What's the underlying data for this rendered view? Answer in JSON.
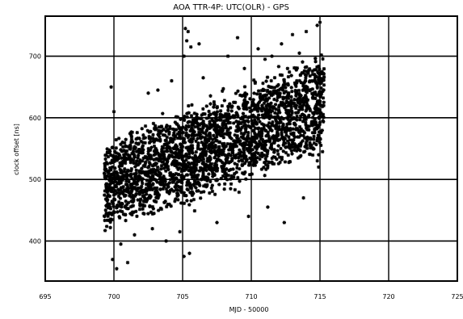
{
  "chart_data": {
    "type": "scatter",
    "title": "AOA TTR-4P:   UTC(OLR) - GPS",
    "xlabel": "MJD - 50000",
    "ylabel": "clock offset [ns]",
    "xlim": [
      695,
      725
    ],
    "ylim": [
      335,
      765
    ],
    "xticks": [
      695,
      700,
      705,
      710,
      715,
      720,
      725
    ],
    "yticks": [
      400,
      500,
      600,
      700
    ],
    "grid": true,
    "marker": "asterisk",
    "color": "#000000",
    "point_density_note_removed": null,
    "x_data_range": [
      699.3,
      715.3
    ],
    "trend": {
      "start": {
        "x": 699.5,
        "y": 490
      },
      "end": {
        "x": 715,
        "y": 620
      }
    },
    "spread_half_width": [
      65,
      75
    ],
    "points": [
      [
        699.8,
        650
      ],
      [
        699.9,
        370
      ],
      [
        700.0,
        610
      ],
      [
        700.2,
        355
      ],
      [
        701.0,
        365
      ],
      [
        702.5,
        640
      ],
      [
        703.2,
        645
      ],
      [
        705.2,
        745
      ],
      [
        705.4,
        740
      ],
      [
        705.3,
        725
      ],
      [
        705.6,
        715
      ],
      [
        705.1,
        700
      ],
      [
        706.2,
        720
      ],
      [
        705.1,
        375
      ],
      [
        705.5,
        380
      ],
      [
        708.3,
        700
      ],
      [
        709.0,
        730
      ],
      [
        711.5,
        700
      ],
      [
        712.2,
        720
      ],
      [
        713.0,
        735
      ],
      [
        714.0,
        740
      ],
      [
        714.8,
        750
      ],
      [
        715.0,
        755
      ],
      [
        712.4,
        430
      ],
      [
        713.5,
        705
      ],
      [
        710.5,
        712
      ],
      [
        711.0,
        695
      ],
      [
        709.5,
        680
      ],
      [
        706.5,
        665
      ],
      [
        704.2,
        660
      ],
      [
        701.5,
        410
      ],
      [
        702.8,
        420
      ],
      [
        704.8,
        415
      ],
      [
        707.5,
        430
      ],
      [
        709.8,
        440
      ],
      [
        711.2,
        455
      ],
      [
        713.8,
        470
      ],
      [
        714.9,
        520
      ],
      [
        700.5,
        395
      ],
      [
        703.8,
        400
      ]
    ],
    "random_seed": 7
  }
}
